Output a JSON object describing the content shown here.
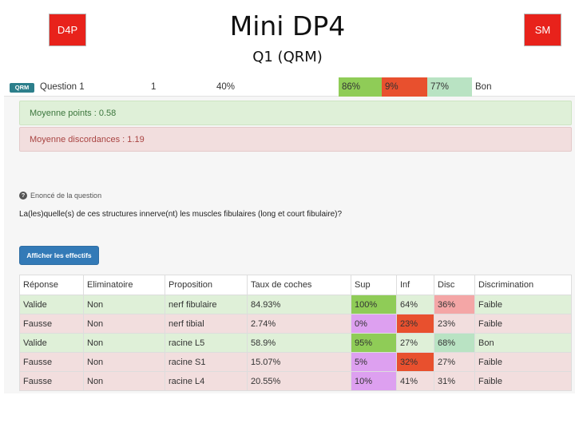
{
  "slide": {
    "badge_left": "D4P",
    "badge_right": "SM",
    "title": "Mini DP4",
    "subtitle": "Q1 (QRM)"
  },
  "question_row": {
    "tag": "QRM",
    "name": "Question 1",
    "number": "1",
    "percent": "40%",
    "sup": "86%",
    "inf": "9%",
    "disc": "77%",
    "evaluation": "Bon",
    "colors": {
      "sup": "#8fcc57",
      "inf": "#e8502e",
      "disc": "#b9e3c3"
    }
  },
  "stats": {
    "avg_points": "Moyenne points : 0.58",
    "avg_discordance": "Moyenne discordances : 1.19"
  },
  "enonce_label": "Enoncé de la question",
  "question_text": "La(les)quelle(s) de ces structures innerve(nt) les muscles fibulaires (long et court fibulaire)?",
  "show_button": "Afficher les effectifs",
  "table": {
    "headers": [
      "Réponse",
      "Eliminatoire",
      "Proposition",
      "Taux de coches",
      "Sup",
      "Inf",
      "Disc",
      "Discrimination"
    ],
    "rows": [
      {
        "cells": [
          "Valide",
          "Non",
          "nerf fibulaire",
          "84.93%",
          "100%",
          "64%",
          "36%",
          "Faible"
        ],
        "row_class": "valid",
        "cell_colors": [
          "",
          "",
          "",
          "",
          "#8fcc57",
          "",
          "#f4a6a6",
          ""
        ]
      },
      {
        "cells": [
          "Fausse",
          "Non",
          "nerf tibial",
          "2.74%",
          "0%",
          "23%",
          "23%",
          "Faible"
        ],
        "row_class": "wrong",
        "cell_colors": [
          "",
          "",
          "",
          "",
          "#dda0f0",
          "#e8502e",
          "",
          ""
        ]
      },
      {
        "cells": [
          "Valide",
          "Non",
          "racine L5",
          "58.9%",
          "95%",
          "27%",
          "68%",
          "Bon"
        ],
        "row_class": "valid",
        "cell_colors": [
          "",
          "",
          "",
          "",
          "#8fcc57",
          "",
          "#b9e3c3",
          ""
        ]
      },
      {
        "cells": [
          "Fausse",
          "Non",
          "racine S1",
          "15.07%",
          "5%",
          "32%",
          "27%",
          "Faible"
        ],
        "row_class": "wrong",
        "cell_colors": [
          "",
          "",
          "",
          "",
          "#dda0f0",
          "#e8502e",
          "",
          ""
        ]
      },
      {
        "cells": [
          "Fausse",
          "Non",
          "racine L4",
          "20.55%",
          "10%",
          "41%",
          "31%",
          "Faible"
        ],
        "row_class": "wrong",
        "cell_colors": [
          "",
          "",
          "",
          "",
          "#dda0f0",
          "",
          "",
          ""
        ]
      }
    ]
  }
}
